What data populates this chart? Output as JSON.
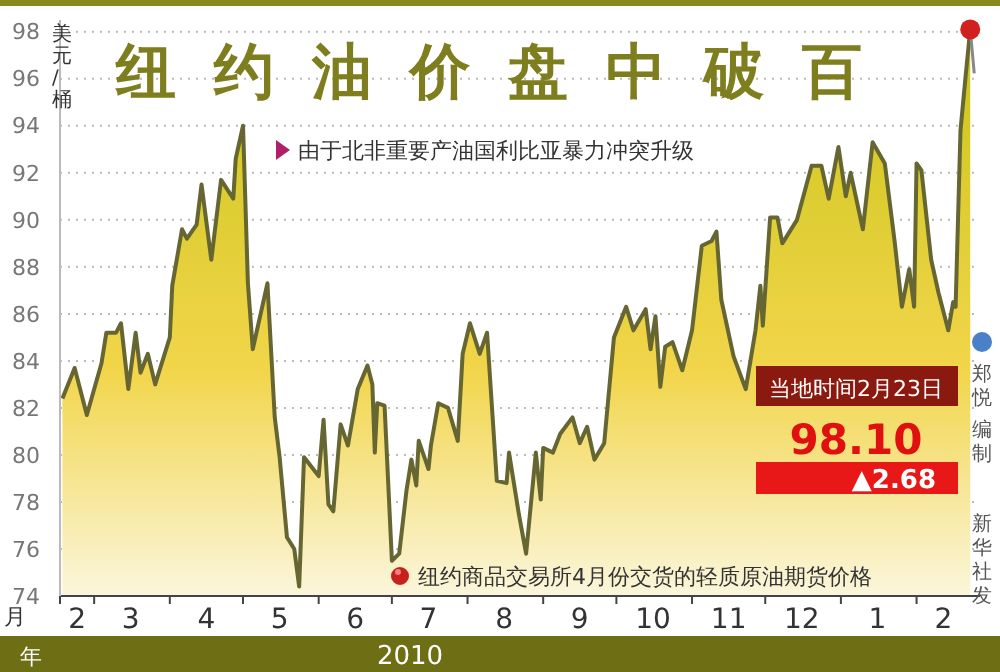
{
  "chart_data": {
    "type": "area",
    "title": "纽约油价盘中破百",
    "ylabel": "美元/桶",
    "xlabel": "月",
    "x": [
      "2010-02-16",
      "2010-02-21",
      "2010-02-26",
      "2010-03-04",
      "2010-03-06",
      "2010-03-10",
      "2010-03-12",
      "2010-03-15",
      "2010-03-18",
      "2010-03-20",
      "2010-03-23",
      "2010-03-26",
      "2010-04-01",
      "2010-04-02",
      "2010-04-06",
      "2010-04-08",
      "2010-04-12",
      "2010-04-14",
      "2010-04-18",
      "2010-04-22",
      "2010-04-27",
      "2010-04-28",
      "2010-05-01",
      "2010-05-03",
      "2010-05-05",
      "2010-05-11",
      "2010-05-14",
      "2010-05-16",
      "2010-05-19",
      "2010-05-22",
      "2010-05-24",
      "2010-05-26",
      "2010-06-01",
      "2010-06-03",
      "2010-06-05",
      "2010-06-07",
      "2010-06-10",
      "2010-06-13",
      "2010-06-17",
      "2010-06-21",
      "2010-06-23",
      "2010-06-24",
      "2010-06-25",
      "2010-06-28",
      "2010-07-01",
      "2010-07-04",
      "2010-07-07",
      "2010-07-09",
      "2010-07-11",
      "2010-07-12",
      "2010-07-16",
      "2010-07-17",
      "2010-07-20",
      "2010-07-24",
      "2010-07-26",
      "2010-07-28",
      "2010-07-30",
      "2010-08-02",
      "2010-08-06",
      "2010-08-09",
      "2010-08-13",
      "2010-08-17",
      "2010-08-18",
      "2010-08-22",
      "2010-08-25",
      "2010-08-29",
      "2010-08-31",
      "2010-09-01",
      "2010-09-05",
      "2010-09-08",
      "2010-09-13",
      "2010-09-16",
      "2010-09-19",
      "2010-09-22",
      "2010-09-26",
      "2010-09-30",
      "2010-10-05",
      "2010-10-08",
      "2010-10-13",
      "2010-10-15",
      "2010-10-17",
      "2010-10-19",
      "2010-10-21",
      "2010-10-24",
      "2010-10-28",
      "2010-11-01",
      "2010-11-05",
      "2010-11-09",
      "2010-11-11",
      "2010-11-13",
      "2010-11-18",
      "2010-11-23",
      "2010-11-27",
      "2010-11-29",
      "2010-11-30",
      "2010-12-03",
      "2010-12-06",
      "2010-12-08",
      "2010-12-14",
      "2010-12-20",
      "2010-12-24",
      "2010-12-27",
      "2010-12-31",
      "2011-01-03",
      "2011-01-05",
      "2011-01-10",
      "2011-01-14",
      "2011-01-19",
      "2011-01-23",
      "2011-01-26",
      "2011-01-29",
      "2011-01-31",
      "2011-02-01",
      "2011-02-03",
      "2011-02-07",
      "2011-02-10",
      "2011-02-14",
      "2011-02-16",
      "2011-02-17",
      "2011-02-19",
      "2011-02-21",
      "2011-02-23"
    ],
    "series": [
      {
        "color": "#666633",
        "values": [
          82.4,
          83.7,
          81.7,
          83.9,
          85.2,
          85.2,
          85.6,
          82.8,
          85.2,
          83.5,
          84.3,
          83.0,
          85.0,
          87.2,
          89.6,
          89.2,
          89.8,
          91.5,
          88.3,
          91.7,
          90.9,
          92.6,
          94.0,
          87.3,
          84.5,
          87.3,
          81.6,
          79.9,
          76.5,
          76.0,
          74.4,
          79.9,
          79.1,
          81.5,
          77.9,
          77.6,
          81.3,
          80.4,
          82.8,
          83.8,
          83.0,
          80.1,
          82.2,
          82.1,
          75.5,
          75.8,
          78.5,
          79.8,
          78.7,
          80.6,
          79.4,
          80.4,
          82.2,
          82.0,
          81.3,
          80.6,
          84.3,
          85.6,
          84.3,
          85.2,
          78.9,
          78.8,
          80.1,
          77.5,
          75.8,
          80.1,
          78.1,
          80.3,
          80.1,
          80.9,
          81.6,
          80.5,
          81.2,
          79.8,
          80.5,
          85.0,
          86.3,
          85.3,
          86.2,
          84.5,
          85.9,
          82.9,
          84.6,
          84.8,
          83.6,
          85.3,
          88.9,
          89.1,
          89.5,
          86.6,
          84.2,
          82.8,
          85.3,
          87.2,
          85.5,
          90.1,
          90.1,
          89.0,
          90.0,
          92.3,
          92.3,
          90.9,
          93.1,
          91.0,
          92.0,
          89.6,
          93.3,
          92.4,
          89.1,
          86.3,
          87.9,
          86.3,
          92.4,
          92.1,
          88.3,
          86.9,
          85.3,
          86.5,
          86.3,
          93.8,
          96.0,
          98.1
        ]
      }
    ],
    "ylim": [
      74,
      98.5
    ],
    "yticks": [
      74,
      76,
      78,
      80,
      82,
      84,
      86,
      88,
      90,
      92,
      94,
      96,
      98
    ],
    "xlim": [
      "2010-02-15",
      "2011-02-27"
    ],
    "xticks": [
      {
        "value": "2010-02-15",
        "label": null
      },
      {
        "value": "2010-02-22",
        "label": "2"
      },
      {
        "value": "2010-03-01",
        "label": null
      },
      {
        "value": "2010-03-16",
        "label": "3"
      },
      {
        "value": "2010-04-01",
        "label": null
      },
      {
        "value": "2010-04-16",
        "label": "4"
      },
      {
        "value": "2010-05-01",
        "label": null
      },
      {
        "value": "2010-05-16",
        "label": "5"
      },
      {
        "value": "2010-06-01",
        "label": null
      },
      {
        "value": "2010-06-16",
        "label": "6"
      },
      {
        "value": "2010-07-01",
        "label": null
      },
      {
        "value": "2010-07-16",
        "label": "7"
      },
      {
        "value": "2010-08-01",
        "label": null
      },
      {
        "value": "2010-08-16",
        "label": "8"
      },
      {
        "value": "2010-09-01",
        "label": null
      },
      {
        "value": "2010-09-16",
        "label": "9"
      },
      {
        "value": "2010-10-01",
        "label": null
      },
      {
        "value": "2010-10-16",
        "label": "10"
      },
      {
        "value": "2010-11-01",
        "label": null
      },
      {
        "value": "2010-11-16",
        "label": "11"
      },
      {
        "value": "2010-12-01",
        "label": null
      },
      {
        "value": "2010-12-16",
        "label": "12"
      },
      {
        "value": "2011-01-01",
        "label": null
      },
      {
        "value": "2011-01-16",
        "label": "1"
      },
      {
        "value": "2011-02-01",
        "label": null
      },
      {
        "value": "2011-02-12",
        "label": "2"
      }
    ],
    "grid": "y",
    "annotations": [
      "由于北非重要产油国利比亚暴力冲突升级",
      "纽约商品交易所4月份交货的轻质原油期货价格",
      "当地时间2月23日",
      "98.10",
      "▲2.68",
      "郑悦编制",
      "新华社发",
      "年",
      "2010"
    ]
  }
}
